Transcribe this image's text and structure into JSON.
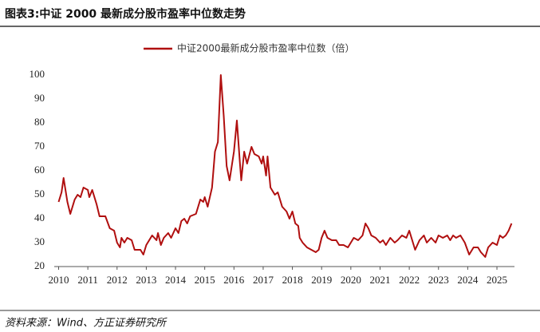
{
  "chart_data": {
    "type": "line",
    "title": "图表3:中证 2000 最新成分股市盈率中位数走势",
    "source": "资料来源：Wind、方正证券研究所",
    "x": [
      2010.0,
      2010.1,
      2010.17,
      2010.3,
      2010.4,
      2010.55,
      2010.65,
      2010.75,
      2010.85,
      2011.0,
      2011.05,
      2011.15,
      2011.3,
      2011.4,
      2011.6,
      2011.75,
      2011.9,
      2012.0,
      2012.1,
      2012.15,
      2012.25,
      2012.35,
      2012.5,
      2012.6,
      2012.8,
      2012.9,
      2013.0,
      2013.1,
      2013.2,
      2013.35,
      2013.4,
      2013.5,
      2013.6,
      2013.75,
      2013.85,
      2014.0,
      2014.1,
      2014.2,
      2014.3,
      2014.4,
      2014.5,
      2014.7,
      2014.85,
      2014.95,
      2015.0,
      2015.1,
      2015.25,
      2015.35,
      2015.45,
      2015.55,
      2015.65,
      2015.75,
      2015.85,
      2016.0,
      2016.1,
      2016.2,
      2016.25,
      2016.35,
      2016.45,
      2016.6,
      2016.7,
      2016.85,
      2016.95,
      2017.0,
      2017.1,
      2017.15,
      2017.25,
      2017.4,
      2017.5,
      2017.65,
      2017.8,
      2017.9,
      2018.0,
      2018.1,
      2018.2,
      2018.25,
      2018.35,
      2018.5,
      2018.65,
      2018.8,
      2018.9,
      2019.0,
      2019.1,
      2019.2,
      2019.35,
      2019.5,
      2019.6,
      2019.75,
      2019.9,
      2020.0,
      2020.1,
      2020.25,
      2020.4,
      2020.5,
      2020.6,
      2020.7,
      2020.85,
      2021.0,
      2021.1,
      2021.2,
      2021.35,
      2021.5,
      2021.6,
      2021.75,
      2021.9,
      2022.0,
      2022.1,
      2022.2,
      2022.35,
      2022.5,
      2022.6,
      2022.75,
      2022.9,
      2023.0,
      2023.15,
      2023.3,
      2023.4,
      2023.5,
      2023.6,
      2023.75,
      2023.9,
      2024.05,
      2024.2,
      2024.35,
      2024.45,
      2024.6,
      2024.7,
      2024.85,
      2025.0,
      2025.1,
      2025.2,
      2025.3,
      2025.4,
      2025.5
    ],
    "series": [
      {
        "name": "中证2000最新成分股市盈率中位数（倍）",
        "color": "#b00f0f",
        "values": [
          47,
          51,
          57,
          47,
          42,
          48,
          50,
          49,
          53,
          52,
          49,
          52,
          46,
          41,
          41,
          36,
          35,
          30,
          28,
          32,
          30,
          32,
          31,
          27,
          27,
          25,
          29,
          31,
          33,
          31,
          34,
          29,
          32,
          34,
          32,
          36,
          34,
          39,
          40,
          38,
          41,
          42,
          48,
          47,
          49,
          45,
          53,
          68,
          72,
          100,
          83,
          62,
          56,
          68,
          81,
          64,
          56,
          68,
          63,
          70,
          67,
          66,
          63,
          66,
          58,
          66,
          53,
          50,
          51,
          45,
          43,
          40,
          43,
          38,
          37,
          32,
          30,
          28,
          27,
          26,
          27,
          32,
          35,
          32,
          31,
          31,
          29,
          29,
          28,
          30,
          32,
          31,
          33,
          38,
          36,
          33,
          32,
          30,
          31,
          29,
          32,
          30,
          31,
          33,
          32,
          35,
          31,
          27,
          31,
          33,
          30,
          32,
          30,
          33,
          32,
          33,
          31,
          33,
          32,
          33,
          30,
          25,
          28,
          28,
          26,
          24,
          28,
          30,
          29,
          33,
          32,
          33,
          35,
          38
        ]
      }
    ],
    "xlim": [
      2009.85,
      2025.6
    ],
    "xticks": [
      2010,
      2011,
      2012,
      2013,
      2014,
      2015,
      2016,
      2017,
      2018,
      2019,
      2020,
      2021,
      2022,
      2023,
      2024,
      2025
    ],
    "ylim": [
      20,
      100
    ],
    "yticks": [
      20,
      30,
      40,
      50,
      60,
      70,
      80,
      90,
      100
    ],
    "grid": false
  }
}
